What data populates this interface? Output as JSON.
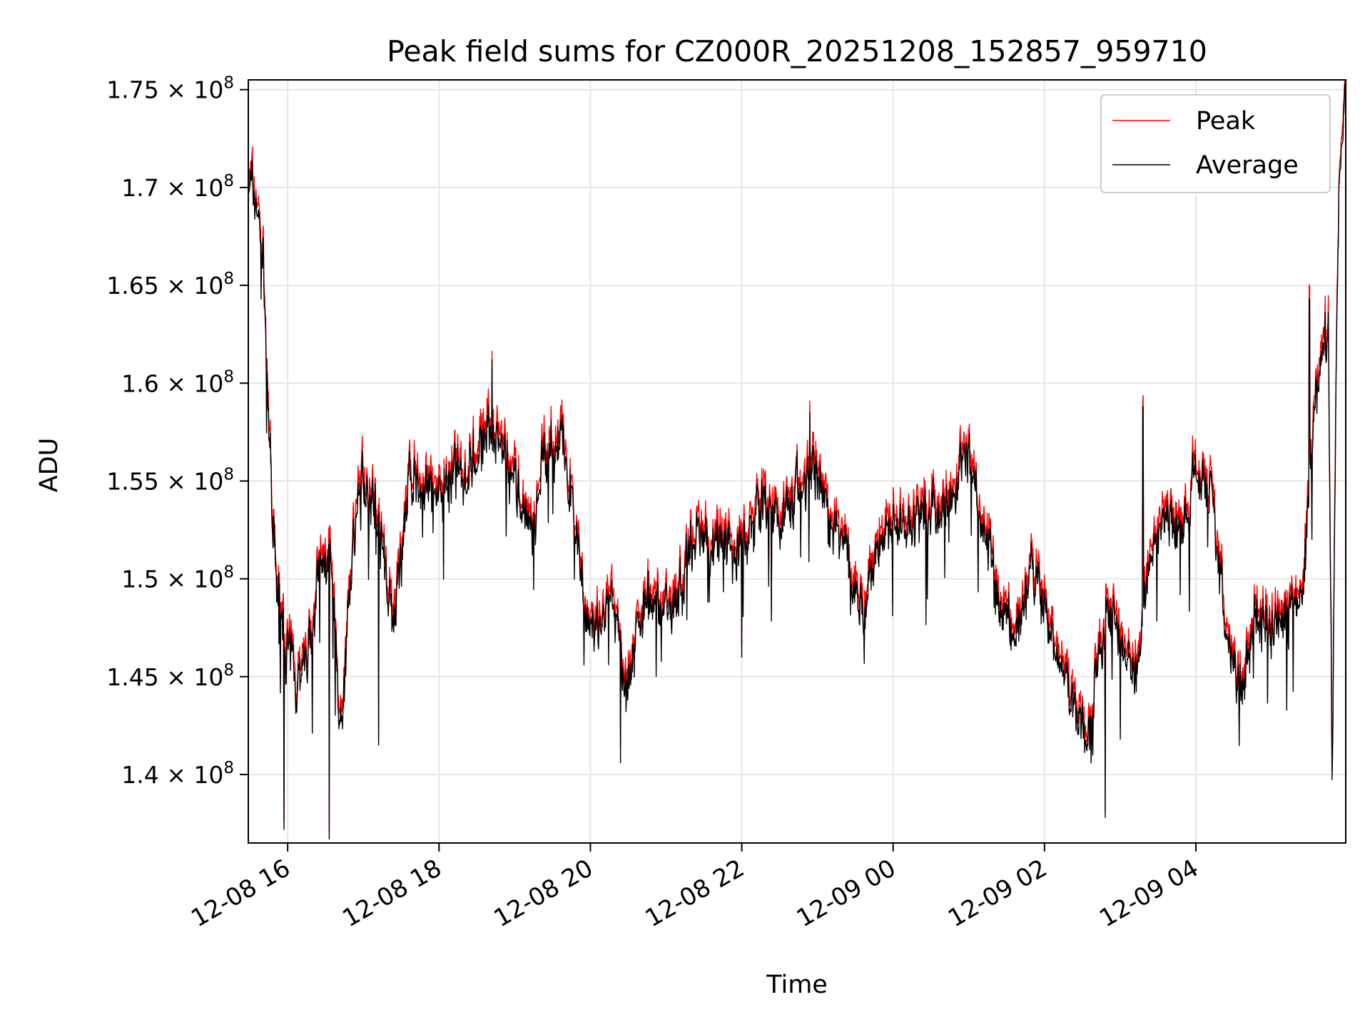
{
  "chart_data": {
    "type": "line",
    "title": "Peak field sums for CZ000R_20251208_152857_959710",
    "xlabel": "Time",
    "ylabel": "ADU",
    "x_start_hours": 15.48,
    "x_end_hours": 29.98,
    "ylim": [
      136500000,
      175500000
    ],
    "grid": true,
    "legend_position": "top-right",
    "x_ticks": [
      {
        "hours": 16,
        "label": "12-08 16"
      },
      {
        "hours": 18,
        "label": "12-08 18"
      },
      {
        "hours": 20,
        "label": "12-08 20"
      },
      {
        "hours": 22,
        "label": "12-08 22"
      },
      {
        "hours": 24,
        "label": "12-09 00"
      },
      {
        "hours": 26,
        "label": "12-09 02"
      },
      {
        "hours": 28,
        "label": "12-09 04"
      }
    ],
    "y_ticks": [
      {
        "value": 140000000,
        "mantissa": "1.4",
        "exp": "8"
      },
      {
        "value": 145000000,
        "mantissa": "1.45",
        "exp": "8"
      },
      {
        "value": 150000000,
        "mantissa": "1.5",
        "exp": "8"
      },
      {
        "value": 155000000,
        "mantissa": "1.55",
        "exp": "8"
      },
      {
        "value": 160000000,
        "mantissa": "1.6",
        "exp": "8"
      },
      {
        "value": 165000000,
        "mantissa": "1.65",
        "exp": "8"
      },
      {
        "value": 170000000,
        "mantissa": "1.7",
        "exp": "8"
      },
      {
        "value": 175000000,
        "mantissa": "1.75",
        "exp": "8"
      }
    ],
    "times_symbol": "×",
    "tick_base": "10",
    "series": [
      {
        "name": "Peak",
        "color": "#ff0000",
        "peak_offset": 300000
      },
      {
        "name": "Average",
        "color": "#000000",
        "peak_offset": 0
      }
    ],
    "anchor_hours": [
      15.48,
      15.6,
      15.68,
      15.8,
      15.95,
      16.1,
      16.25,
      16.4,
      16.55,
      16.7,
      16.85,
      17.0,
      17.2,
      17.4,
      17.6,
      17.8,
      18.0,
      18.2,
      18.4,
      18.6,
      18.8,
      19.0,
      19.2,
      19.4,
      19.6,
      19.75,
      19.9,
      20.05,
      20.2,
      20.35,
      20.45,
      20.6,
      20.8,
      21.0,
      21.2,
      21.4,
      21.6,
      21.8,
      22.0,
      22.2,
      22.4,
      22.6,
      22.8,
      23.0,
      23.2,
      23.4,
      23.6,
      23.8,
      24.0,
      24.2,
      24.4,
      24.6,
      24.8,
      25.0,
      25.2,
      25.4,
      25.6,
      25.8,
      26.0,
      26.2,
      26.4,
      26.6,
      26.8,
      27.0,
      27.2,
      27.4,
      27.6,
      27.8,
      28.0,
      28.2,
      28.4,
      28.6,
      28.8,
      29.0,
      29.2,
      29.4,
      29.5,
      29.6,
      29.7,
      29.75,
      29.8,
      29.85,
      29.9,
      29.98
    ],
    "anchor_values": [
      170500000,
      169000000,
      166000000,
      152000000,
      147000000,
      145000000,
      146000000,
      149500000,
      151500000,
      142000000,
      151500000,
      155000000,
      153000000,
      147500000,
      155000000,
      154000000,
      154500000,
      155000000,
      155500000,
      157500000,
      156500000,
      155000000,
      152000000,
      156500000,
      157000000,
      154500000,
      149000000,
      147000000,
      148000000,
      148500000,
      144000000,
      147000000,
      149000000,
      148500000,
      149500000,
      152500000,
      151500000,
      152000000,
      151000000,
      153500000,
      153000000,
      153500000,
      155000000,
      155500000,
      153000000,
      151000000,
      148500000,
      151500000,
      153000000,
      152500000,
      153500000,
      153000000,
      154500000,
      156500000,
      152500000,
      149000000,
      147000000,
      150000000,
      148500000,
      145500000,
      143500000,
      142000000,
      148500000,
      147000000,
      144500000,
      151500000,
      153500000,
      152000000,
      155500000,
      155000000,
      147000000,
      144000000,
      148500000,
      147500000,
      148000000,
      149000000,
      155000000,
      160000000,
      162500000,
      163000000,
      140000000,
      160000000,
      170500000,
      175000000
    ],
    "spikes": [
      {
        "hours": 15.65,
        "value": 164300000
      },
      {
        "hours": 16.55,
        "value": 136700000
      },
      {
        "hours": 15.95,
        "value": 137200000
      },
      {
        "hours": 18.7,
        "value": 161200000
      },
      {
        "hours": 20.4,
        "value": 140600000
      },
      {
        "hours": 22.0,
        "value": 146000000
      },
      {
        "hours": 22.9,
        "value": 158500000
      },
      {
        "hours": 26.8,
        "value": 137800000
      },
      {
        "hours": 27.0,
        "value": 141800000
      },
      {
        "hours": 27.3,
        "value": 158800000
      },
      {
        "hours": 29.5,
        "value": 164300000
      },
      {
        "hours": 17.2,
        "value": 141500000
      }
    ],
    "noise_amplitude": 1700000,
    "noise_seed": 7
  }
}
